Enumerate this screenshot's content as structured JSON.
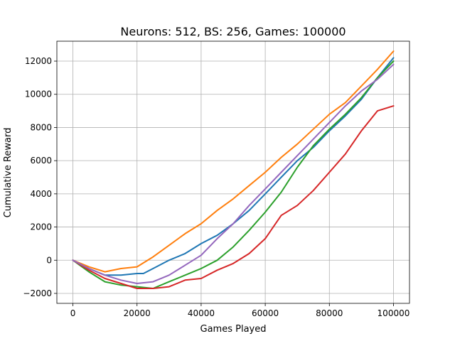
{
  "chart_data": {
    "type": "line",
    "title": "Neurons: 512, BS: 256, Games: 100000",
    "xlabel": "Games Played",
    "ylabel": "Cumulative Reward",
    "xlim": [
      -5000,
      105000
    ],
    "ylim": [
      -2600,
      13200
    ],
    "grid": true,
    "x_ticks": [
      0,
      20000,
      40000,
      60000,
      80000,
      100000
    ],
    "y_ticks": [
      -2000,
      0,
      2000,
      4000,
      6000,
      8000,
      10000,
      12000
    ],
    "series": [
      {
        "color": "#1f77b4",
        "points": [
          [
            0,
            0
          ],
          [
            5000,
            -500
          ],
          [
            10000,
            -900
          ],
          [
            15000,
            -900
          ],
          [
            20000,
            -800
          ],
          [
            22000,
            -800
          ],
          [
            25000,
            -500
          ],
          [
            30000,
            0
          ],
          [
            35000,
            400
          ],
          [
            40000,
            1000
          ],
          [
            45000,
            1500
          ],
          [
            50000,
            2200
          ],
          [
            55000,
            3000
          ],
          [
            60000,
            4000
          ],
          [
            65000,
            5000
          ],
          [
            70000,
            6000
          ],
          [
            75000,
            6800
          ],
          [
            80000,
            7800
          ],
          [
            85000,
            8700
          ],
          [
            90000,
            9700
          ],
          [
            95000,
            11000
          ],
          [
            100000,
            12200
          ]
        ]
      },
      {
        "color": "#ff7f0e",
        "points": [
          [
            0,
            0
          ],
          [
            5000,
            -400
          ],
          [
            10000,
            -700
          ],
          [
            15000,
            -500
          ],
          [
            20000,
            -400
          ],
          [
            25000,
            200
          ],
          [
            30000,
            900
          ],
          [
            35000,
            1600
          ],
          [
            40000,
            2200
          ],
          [
            45000,
            3000
          ],
          [
            50000,
            3700
          ],
          [
            55000,
            4500
          ],
          [
            60000,
            5300
          ],
          [
            65000,
            6200
          ],
          [
            70000,
            7000
          ],
          [
            75000,
            7900
          ],
          [
            80000,
            8800
          ],
          [
            85000,
            9500
          ],
          [
            90000,
            10500
          ],
          [
            95000,
            11500
          ],
          [
            100000,
            12600
          ]
        ]
      },
      {
        "color": "#2ca02c",
        "points": [
          [
            0,
            0
          ],
          [
            5000,
            -700
          ],
          [
            10000,
            -1300
          ],
          [
            15000,
            -1500
          ],
          [
            20000,
            -1600
          ],
          [
            25000,
            -1700
          ],
          [
            30000,
            -1300
          ],
          [
            35000,
            -900
          ],
          [
            40000,
            -500
          ],
          [
            45000,
            0
          ],
          [
            50000,
            800
          ],
          [
            55000,
            1800
          ],
          [
            60000,
            2900
          ],
          [
            65000,
            4100
          ],
          [
            70000,
            5600
          ],
          [
            75000,
            6900
          ],
          [
            80000,
            7900
          ],
          [
            85000,
            8800
          ],
          [
            90000,
            9800
          ],
          [
            95000,
            11000
          ],
          [
            100000,
            12000
          ]
        ]
      },
      {
        "color": "#d62728",
        "points": [
          [
            0,
            0
          ],
          [
            5000,
            -600
          ],
          [
            10000,
            -1100
          ],
          [
            15000,
            -1400
          ],
          [
            20000,
            -1700
          ],
          [
            25000,
            -1700
          ],
          [
            30000,
            -1600
          ],
          [
            35000,
            -1200
          ],
          [
            40000,
            -1100
          ],
          [
            45000,
            -600
          ],
          [
            50000,
            -200
          ],
          [
            55000,
            400
          ],
          [
            60000,
            1300
          ],
          [
            65000,
            2700
          ],
          [
            70000,
            3300
          ],
          [
            75000,
            4200
          ],
          [
            80000,
            5300
          ],
          [
            85000,
            6400
          ],
          [
            90000,
            7800
          ],
          [
            95000,
            9000
          ],
          [
            100000,
            9300
          ]
        ]
      },
      {
        "color": "#9467bd",
        "points": [
          [
            0,
            0
          ],
          [
            5000,
            -500
          ],
          [
            10000,
            -900
          ],
          [
            15000,
            -1200
          ],
          [
            20000,
            -1400
          ],
          [
            25000,
            -1300
          ],
          [
            30000,
            -900
          ],
          [
            35000,
            -300
          ],
          [
            40000,
            300
          ],
          [
            45000,
            1300
          ],
          [
            50000,
            2200
          ],
          [
            55000,
            3300
          ],
          [
            60000,
            4300
          ],
          [
            65000,
            5300
          ],
          [
            70000,
            6300
          ],
          [
            75000,
            7300
          ],
          [
            80000,
            8300
          ],
          [
            85000,
            9300
          ],
          [
            90000,
            10200
          ],
          [
            95000,
            10900
          ],
          [
            100000,
            11800
          ]
        ]
      }
    ]
  }
}
